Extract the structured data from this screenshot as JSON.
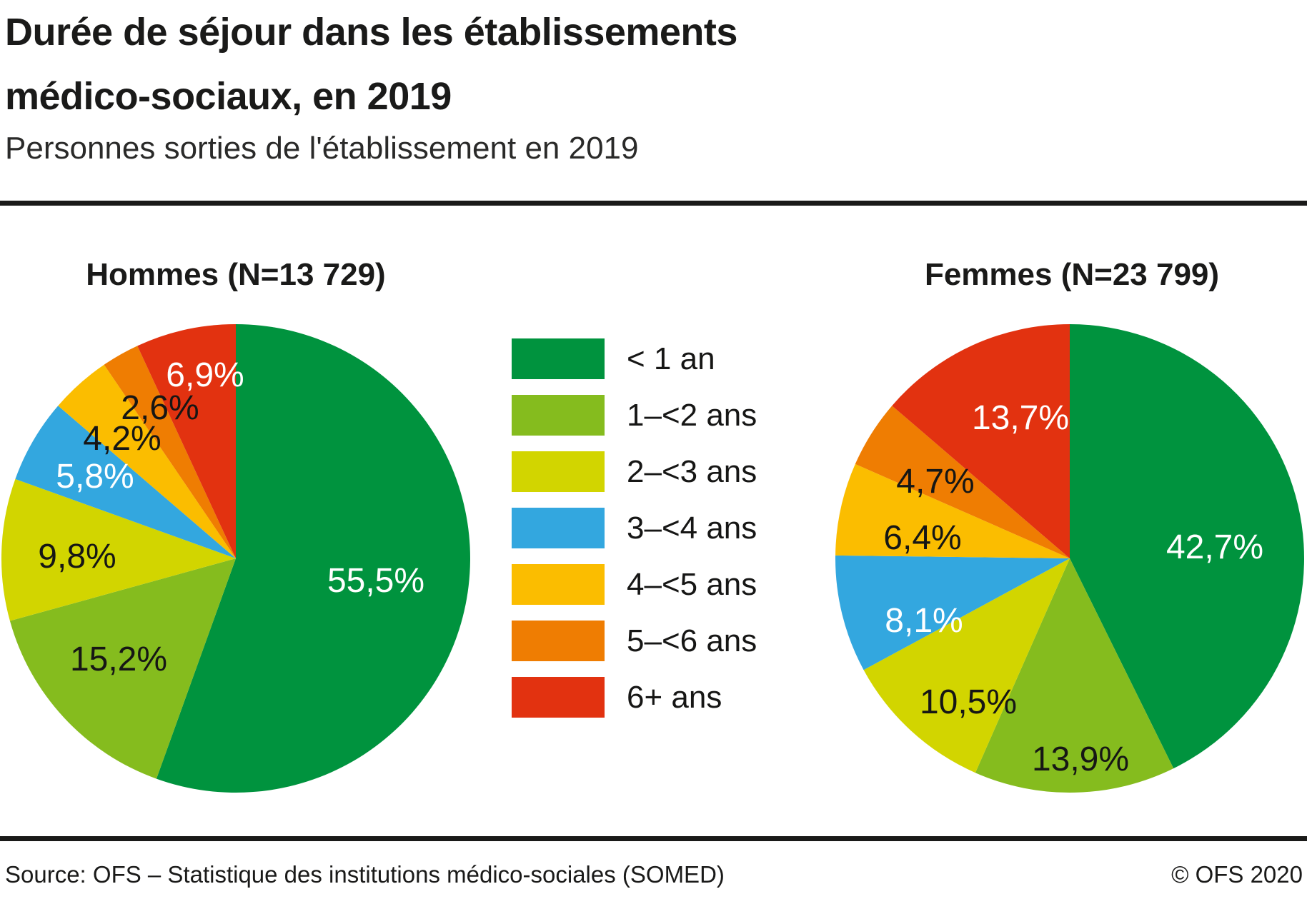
{
  "header": {
    "title_line1": "Durée de séjour dans les établissements",
    "title_line2": "médico-sociaux, en 2019",
    "subtitle": "Personnes sorties de l'établissement en 2019"
  },
  "legend": {
    "items": [
      {
        "label": "< 1 an",
        "color": "#00933E"
      },
      {
        "label": "1–<2 ans",
        "color": "#85BC1E"
      },
      {
        "label": "2–<3 ans",
        "color": "#D2D500"
      },
      {
        "label": "3–<4 ans",
        "color": "#33A7DF"
      },
      {
        "label": "4–<5 ans",
        "color": "#FBBD00"
      },
      {
        "label": "5–<6 ans",
        "color": "#EF7D02"
      },
      {
        "label": "6+ ans",
        "color": "#E23210"
      }
    ]
  },
  "chart_data": {
    "type": "pie",
    "title": "Durée de séjour dans les établissements médico-sociaux, en 2019",
    "subtitle": "Personnes sorties de l'établissement en 2019",
    "categories": [
      "< 1 an",
      "1–<2 ans",
      "2–<3 ans",
      "3–<4 ans",
      "4–<5 ans",
      "5–<6 ans",
      "6+ ans"
    ],
    "colors": [
      "#00933E",
      "#85BC1E",
      "#D2D500",
      "#33A7DF",
      "#FBBD00",
      "#EF7D02",
      "#E23210"
    ],
    "start_angle": "12-oclock",
    "direction": "clockwise",
    "legend_position": "center-between-pies",
    "series": [
      {
        "name": "Hommes (N=13 729)",
        "n": "13 729",
        "values": [
          55.5,
          15.2,
          9.8,
          5.8,
          4.2,
          2.6,
          6.9
        ],
        "labels": [
          "55,5%",
          "15,2%",
          "9,8%",
          "5,8%",
          "4,2%",
          "2,6%",
          "6,9%"
        ]
      },
      {
        "name": "Femmes (N=23 799)",
        "n": "23 799",
        "values": [
          42.7,
          13.9,
          10.5,
          8.1,
          6.4,
          4.7,
          13.7
        ],
        "labels": [
          "42,7%",
          "13,9%",
          "10,5%",
          "8,1%",
          "6,4%",
          "4,7%",
          "13,7%"
        ]
      }
    ]
  },
  "footer": {
    "source": "Source: OFS – Statistique des institutions médico-sociales (SOMED)",
    "copyright": "© OFS 2020"
  }
}
